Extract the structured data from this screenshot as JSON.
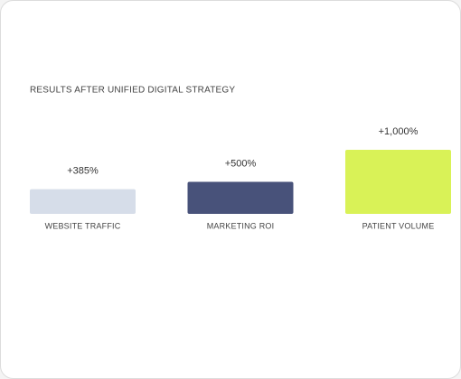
{
  "chart_data": {
    "type": "bar",
    "title": "RESULTS AFTER UNIFIED DIGITAL STRATEGY",
    "categories": [
      "WEBSITE TRAFFIC",
      "MARKETING ROI",
      "PATIENT VOLUME"
    ],
    "values": [
      385,
      500,
      1000
    ],
    "value_labels": [
      "+385%",
      "+500%",
      "+1,000%"
    ],
    "colors": [
      "#d6dde9",
      "#48527a",
      "#d9f257"
    ]
  }
}
